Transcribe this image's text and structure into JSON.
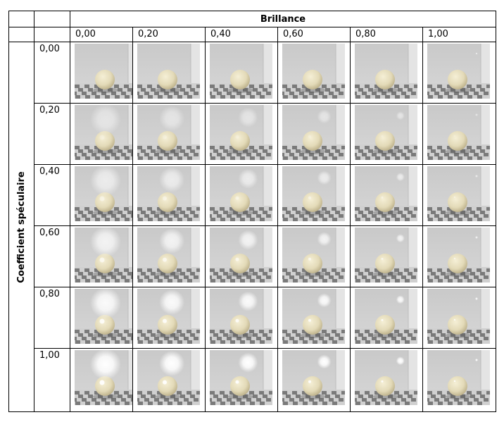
{
  "table": {
    "column_title": "Brillance",
    "row_title": "Coefficient spéculaire",
    "columns": [
      "0,00",
      "0,20",
      "0,40",
      "0,60",
      "0,80",
      "1,00"
    ],
    "rows": [
      "0,00",
      "0,20",
      "0,40",
      "0,60",
      "0,80",
      "1,00"
    ]
  },
  "render": {
    "sphere_color": "#e3dab8",
    "wall_color": "#d7d7d7",
    "floor_dark": "#7a7a7a",
    "floor_light": "#d0d0d0"
  }
}
